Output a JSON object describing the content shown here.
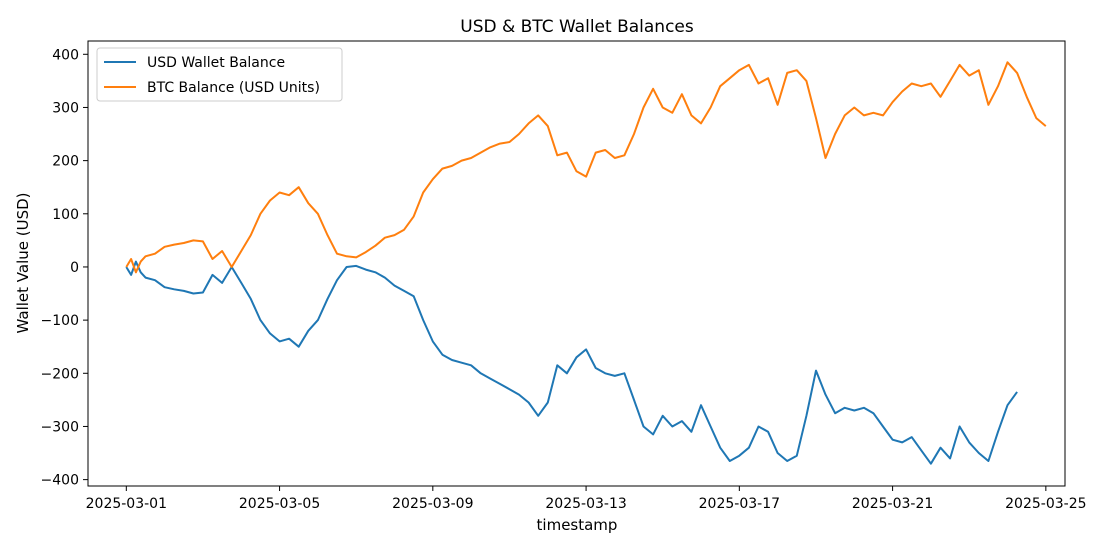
{
  "chart_data": {
    "type": "line",
    "title": "USD & BTC Wallet Balances",
    "xlabel": "timestamp",
    "ylabel": "Wallet Value (USD)",
    "xlim": [
      "2025-02-28T00:00",
      "2025-03-25T12:00"
    ],
    "ylim": [
      -412,
      425
    ],
    "x_ticks": [
      "2025-03-01",
      "2025-03-05",
      "2025-03-09",
      "2025-03-13",
      "2025-03-17",
      "2025-03-21",
      "2025-03-25"
    ],
    "y_ticks": [
      -400,
      -300,
      -200,
      -100,
      0,
      100,
      200,
      300,
      400
    ],
    "y_tick_labels": [
      "−400",
      "−300",
      "−200",
      "−100",
      "0",
      "100",
      "200",
      "300",
      "400"
    ],
    "grid": false,
    "legend_position": "top-left",
    "series": [
      {
        "name": "USD Wallet Balance",
        "color": "#1f77b4",
        "points": [
          [
            "2025-03-01T00:00",
            0
          ],
          [
            "2025-03-01T03:00",
            -15
          ],
          [
            "2025-03-01T06:00",
            10
          ],
          [
            "2025-03-01T09:00",
            -10
          ],
          [
            "2025-03-01T12:00",
            -20
          ],
          [
            "2025-03-01T18:00",
            -25
          ],
          [
            "2025-03-02T00:00",
            -38
          ],
          [
            "2025-03-02T06:00",
            -42
          ],
          [
            "2025-03-02T12:00",
            -45
          ],
          [
            "2025-03-02T18:00",
            -50
          ],
          [
            "2025-03-03T00:00",
            -48
          ],
          [
            "2025-03-03T06:00",
            -15
          ],
          [
            "2025-03-03T12:00",
            -30
          ],
          [
            "2025-03-03T18:00",
            0
          ],
          [
            "2025-03-04T00:00",
            -30
          ],
          [
            "2025-03-04T06:00",
            -60
          ],
          [
            "2025-03-04T12:00",
            -100
          ],
          [
            "2025-03-04T18:00",
            -125
          ],
          [
            "2025-03-05T00:00",
            -140
          ],
          [
            "2025-03-05T06:00",
            -135
          ],
          [
            "2025-03-05T12:00",
            -150
          ],
          [
            "2025-03-05T18:00",
            -120
          ],
          [
            "2025-03-06T00:00",
            -100
          ],
          [
            "2025-03-06T06:00",
            -60
          ],
          [
            "2025-03-06T12:00",
            -25
          ],
          [
            "2025-03-06T18:00",
            0
          ],
          [
            "2025-03-07T00:00",
            2
          ],
          [
            "2025-03-07T06:00",
            -5
          ],
          [
            "2025-03-07T12:00",
            -10
          ],
          [
            "2025-03-07T18:00",
            -20
          ],
          [
            "2025-03-08T00:00",
            -35
          ],
          [
            "2025-03-08T06:00",
            -45
          ],
          [
            "2025-03-08T12:00",
            -55
          ],
          [
            "2025-03-08T18:00",
            -100
          ],
          [
            "2025-03-09T00:00",
            -140
          ],
          [
            "2025-03-09T06:00",
            -165
          ],
          [
            "2025-03-09T12:00",
            -175
          ],
          [
            "2025-03-09T18:00",
            -180
          ],
          [
            "2025-03-10T00:00",
            -185
          ],
          [
            "2025-03-10T06:00",
            -200
          ],
          [
            "2025-03-10T12:00",
            -210
          ],
          [
            "2025-03-10T18:00",
            -220
          ],
          [
            "2025-03-11T00:00",
            -230
          ],
          [
            "2025-03-11T06:00",
            -240
          ],
          [
            "2025-03-11T12:00",
            -255
          ],
          [
            "2025-03-11T18:00",
            -280
          ],
          [
            "2025-03-12T00:00",
            -255
          ],
          [
            "2025-03-12T06:00",
            -185
          ],
          [
            "2025-03-12T12:00",
            -200
          ],
          [
            "2025-03-12T18:00",
            -170
          ],
          [
            "2025-03-13T00:00",
            -155
          ],
          [
            "2025-03-13T06:00",
            -190
          ],
          [
            "2025-03-13T12:00",
            -200
          ],
          [
            "2025-03-13T18:00",
            -205
          ],
          [
            "2025-03-14T00:00",
            -200
          ],
          [
            "2025-03-14T06:00",
            -250
          ],
          [
            "2025-03-14T12:00",
            -300
          ],
          [
            "2025-03-14T18:00",
            -315
          ],
          [
            "2025-03-15T00:00",
            -280
          ],
          [
            "2025-03-15T06:00",
            -300
          ],
          [
            "2025-03-15T12:00",
            -290
          ],
          [
            "2025-03-15T18:00",
            -310
          ],
          [
            "2025-03-16T00:00",
            -260
          ],
          [
            "2025-03-16T06:00",
            -300
          ],
          [
            "2025-03-16T12:00",
            -340
          ],
          [
            "2025-03-16T18:00",
            -365
          ],
          [
            "2025-03-17T00:00",
            -355
          ],
          [
            "2025-03-17T06:00",
            -340
          ],
          [
            "2025-03-17T12:00",
            -300
          ],
          [
            "2025-03-17T18:00",
            -310
          ],
          [
            "2025-03-18T00:00",
            -350
          ],
          [
            "2025-03-18T06:00",
            -365
          ],
          [
            "2025-03-18T12:00",
            -355
          ],
          [
            "2025-03-18T18:00",
            -280
          ],
          [
            "2025-03-19T00:00",
            -195
          ],
          [
            "2025-03-19T06:00",
            -240
          ],
          [
            "2025-03-19T12:00",
            -275
          ],
          [
            "2025-03-19T18:00",
            -265
          ],
          [
            "2025-03-20T00:00",
            -270
          ],
          [
            "2025-03-20T06:00",
            -265
          ],
          [
            "2025-03-20T12:00",
            -275
          ],
          [
            "2025-03-20T18:00",
            -300
          ],
          [
            "2025-03-21T00:00",
            -325
          ],
          [
            "2025-03-21T06:00",
            -330
          ],
          [
            "2025-03-21T12:00",
            -320
          ],
          [
            "2025-03-21T18:00",
            -345
          ],
          [
            "2025-03-22T00:00",
            -370
          ],
          [
            "2025-03-22T06:00",
            -340
          ],
          [
            "2025-03-22T12:00",
            -360
          ],
          [
            "2025-03-22T18:00",
            -300
          ],
          [
            "2025-03-23T00:00",
            -330
          ],
          [
            "2025-03-23T06:00",
            -350
          ],
          [
            "2025-03-23T12:00",
            -365
          ],
          [
            "2025-03-23T18:00",
            -310
          ],
          [
            "2025-03-24T00:00",
            -260
          ],
          [
            "2025-03-24T06:00",
            -235
          ]
        ]
      },
      {
        "name": "BTC Balance (USD Units)",
        "color": "#ff7f0e",
        "points": [
          [
            "2025-03-01T00:00",
            0
          ],
          [
            "2025-03-01T03:00",
            15
          ],
          [
            "2025-03-01T06:00",
            -10
          ],
          [
            "2025-03-01T09:00",
            10
          ],
          [
            "2025-03-01T12:00",
            20
          ],
          [
            "2025-03-01T18:00",
            25
          ],
          [
            "2025-03-02T00:00",
            38
          ],
          [
            "2025-03-02T06:00",
            42
          ],
          [
            "2025-03-02T12:00",
            45
          ],
          [
            "2025-03-02T18:00",
            50
          ],
          [
            "2025-03-03T00:00",
            48
          ],
          [
            "2025-03-03T06:00",
            15
          ],
          [
            "2025-03-03T12:00",
            30
          ],
          [
            "2025-03-03T18:00",
            0
          ],
          [
            "2025-03-04T00:00",
            30
          ],
          [
            "2025-03-04T06:00",
            60
          ],
          [
            "2025-03-04T12:00",
            100
          ],
          [
            "2025-03-04T18:00",
            125
          ],
          [
            "2025-03-05T00:00",
            140
          ],
          [
            "2025-03-05T06:00",
            135
          ],
          [
            "2025-03-05T12:00",
            150
          ],
          [
            "2025-03-05T18:00",
            120
          ],
          [
            "2025-03-06T00:00",
            100
          ],
          [
            "2025-03-06T06:00",
            60
          ],
          [
            "2025-03-06T12:00",
            25
          ],
          [
            "2025-03-06T18:00",
            20
          ],
          [
            "2025-03-07T00:00",
            18
          ],
          [
            "2025-03-07T06:00",
            28
          ],
          [
            "2025-03-07T12:00",
            40
          ],
          [
            "2025-03-07T18:00",
            55
          ],
          [
            "2025-03-08T00:00",
            60
          ],
          [
            "2025-03-08T06:00",
            70
          ],
          [
            "2025-03-08T12:00",
            95
          ],
          [
            "2025-03-08T18:00",
            140
          ],
          [
            "2025-03-09T00:00",
            165
          ],
          [
            "2025-03-09T06:00",
            185
          ],
          [
            "2025-03-09T12:00",
            190
          ],
          [
            "2025-03-09T18:00",
            200
          ],
          [
            "2025-03-10T00:00",
            205
          ],
          [
            "2025-03-10T06:00",
            215
          ],
          [
            "2025-03-10T12:00",
            225
          ],
          [
            "2025-03-10T18:00",
            232
          ],
          [
            "2025-03-11T00:00",
            235
          ],
          [
            "2025-03-11T06:00",
            250
          ],
          [
            "2025-03-11T12:00",
            270
          ],
          [
            "2025-03-11T18:00",
            285
          ],
          [
            "2025-03-12T00:00",
            265
          ],
          [
            "2025-03-12T06:00",
            210
          ],
          [
            "2025-03-12T12:00",
            215
          ],
          [
            "2025-03-12T18:00",
            180
          ],
          [
            "2025-03-13T00:00",
            170
          ],
          [
            "2025-03-13T06:00",
            215
          ],
          [
            "2025-03-13T12:00",
            220
          ],
          [
            "2025-03-13T18:00",
            205
          ],
          [
            "2025-03-14T00:00",
            210
          ],
          [
            "2025-03-14T06:00",
            250
          ],
          [
            "2025-03-14T12:00",
            300
          ],
          [
            "2025-03-14T18:00",
            335
          ],
          [
            "2025-03-15T00:00",
            300
          ],
          [
            "2025-03-15T06:00",
            290
          ],
          [
            "2025-03-15T12:00",
            325
          ],
          [
            "2025-03-15T18:00",
            285
          ],
          [
            "2025-03-16T00:00",
            270
          ],
          [
            "2025-03-16T06:00",
            300
          ],
          [
            "2025-03-16T12:00",
            340
          ],
          [
            "2025-03-16T18:00",
            355
          ],
          [
            "2025-03-17T00:00",
            370
          ],
          [
            "2025-03-17T06:00",
            380
          ],
          [
            "2025-03-17T12:00",
            345
          ],
          [
            "2025-03-17T18:00",
            355
          ],
          [
            "2025-03-18T00:00",
            305
          ],
          [
            "2025-03-18T06:00",
            365
          ],
          [
            "2025-03-18T12:00",
            370
          ],
          [
            "2025-03-18T18:00",
            350
          ],
          [
            "2025-03-19T00:00",
            280
          ],
          [
            "2025-03-19T06:00",
            205
          ],
          [
            "2025-03-19T12:00",
            250
          ],
          [
            "2025-03-19T18:00",
            285
          ],
          [
            "2025-03-20T00:00",
            300
          ],
          [
            "2025-03-20T06:00",
            285
          ],
          [
            "2025-03-20T12:00",
            290
          ],
          [
            "2025-03-20T18:00",
            285
          ],
          [
            "2025-03-21T00:00",
            310
          ],
          [
            "2025-03-21T06:00",
            330
          ],
          [
            "2025-03-21T12:00",
            345
          ],
          [
            "2025-03-21T18:00",
            340
          ],
          [
            "2025-03-22T00:00",
            345
          ],
          [
            "2025-03-22T06:00",
            320
          ],
          [
            "2025-03-22T12:00",
            350
          ],
          [
            "2025-03-22T18:00",
            380
          ],
          [
            "2025-03-23T00:00",
            360
          ],
          [
            "2025-03-23T06:00",
            370
          ],
          [
            "2025-03-23T12:00",
            305
          ],
          [
            "2025-03-23T18:00",
            340
          ],
          [
            "2025-03-24T00:00",
            385
          ],
          [
            "2025-03-24T06:00",
            365
          ],
          [
            "2025-03-24T12:00",
            320
          ],
          [
            "2025-03-24T18:00",
            280
          ],
          [
            "2025-03-25T00:00",
            265
          ]
        ]
      }
    ]
  }
}
